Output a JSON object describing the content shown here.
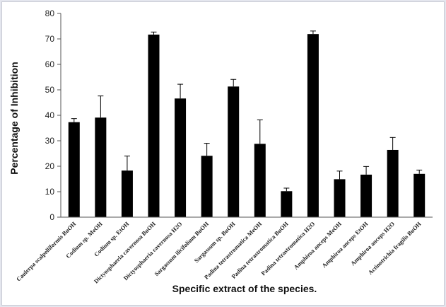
{
  "chart_data": {
    "type": "bar",
    "title": "",
    "xlabel": "Specific extract of the species.",
    "ylabel": "Percentage of Inhibition",
    "ylim": [
      0,
      80
    ],
    "yticks": [
      0,
      10,
      20,
      30,
      40,
      50,
      60,
      70,
      80
    ],
    "grid": false,
    "legend": "none",
    "bar_color": "#000000",
    "categories": [
      "Caulerpa scalpelliformis BuOH",
      "Codium sp. MeOH",
      "Codium sp. EtOH",
      "Dictyosphaeria cavernosa BuOH",
      "Dictyosphaeria cavernosa H2O",
      "Sargassum ilicifolium BuOH",
      "Sargassum sp. BuOH",
      "Padina tetrastromatica MeOH",
      "Padina tetrastromatica BuOH",
      "Padina tetrastromatica H2O",
      "Amphiroa anceps MeOH",
      "Amphiroa anceps EtOH",
      "Amphiroa anceps H2O",
      "Actinotrichia fragilis BuOH"
    ],
    "values": [
      37.3,
      39.1,
      18.3,
      71.7,
      46.6,
      24.1,
      51.3,
      28.8,
      10.2,
      71.9,
      14.9,
      16.7,
      26.4,
      17.0
    ],
    "errors": [
      1.4,
      8.5,
      5.7,
      1.0,
      5.6,
      4.9,
      2.8,
      9.4,
      1.2,
      1.2,
      3.2,
      3.2,
      4.9,
      1.5
    ]
  }
}
